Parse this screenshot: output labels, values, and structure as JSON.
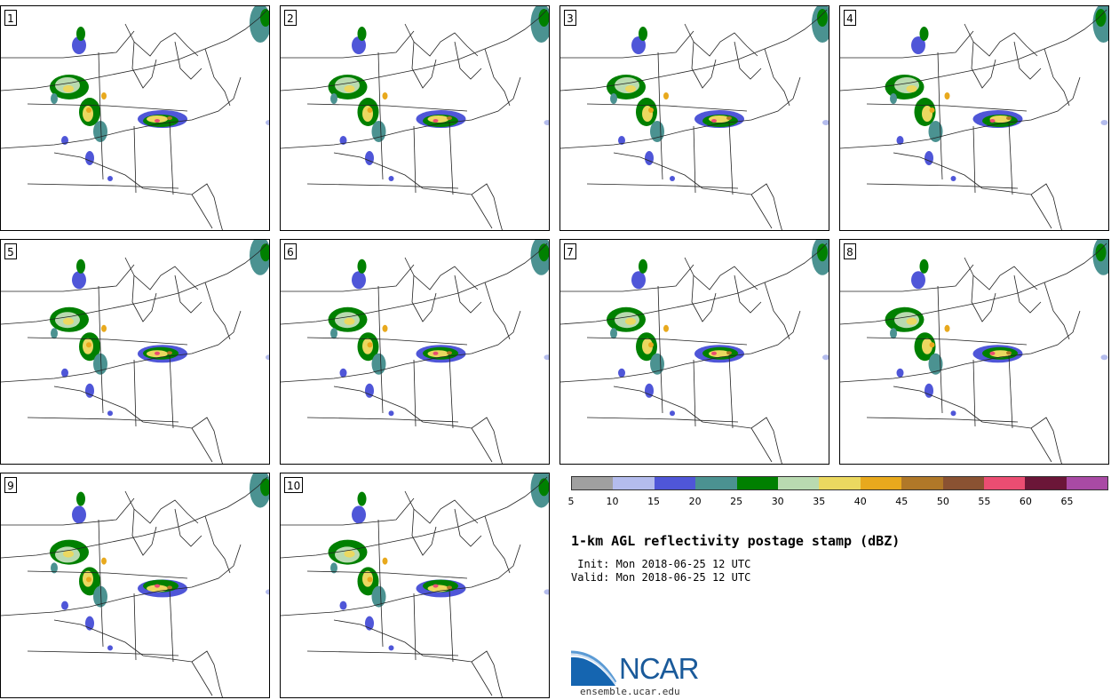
{
  "title": "1-km AGL reflectivity postage stamp (dBZ)",
  "init_line": " Init: Mon 2018-06-25 12 UTC",
  "valid_line": "Valid: Mon 2018-06-25 12 UTC",
  "logo": {
    "text": "NCAR",
    "url": "ensemble.ucar.edu"
  },
  "members": [
    "1",
    "2",
    "3",
    "4",
    "5",
    "6",
    "7",
    "8",
    "9",
    "10"
  ],
  "colorbar": {
    "ticks": [
      "5",
      "10",
      "15",
      "20",
      "25",
      "30",
      "35",
      "40",
      "45",
      "50",
      "55",
      "60",
      "65"
    ],
    "colors": [
      "#a0a0a0",
      "#b4bced",
      "#4f56d8",
      "#4b9291",
      "#008000",
      "#b9dab0",
      "#ebd860",
      "#e8a91d",
      "#b07828",
      "#8a5232",
      "#eb4d72",
      "#6b1638",
      "#a94aa5"
    ]
  }
}
